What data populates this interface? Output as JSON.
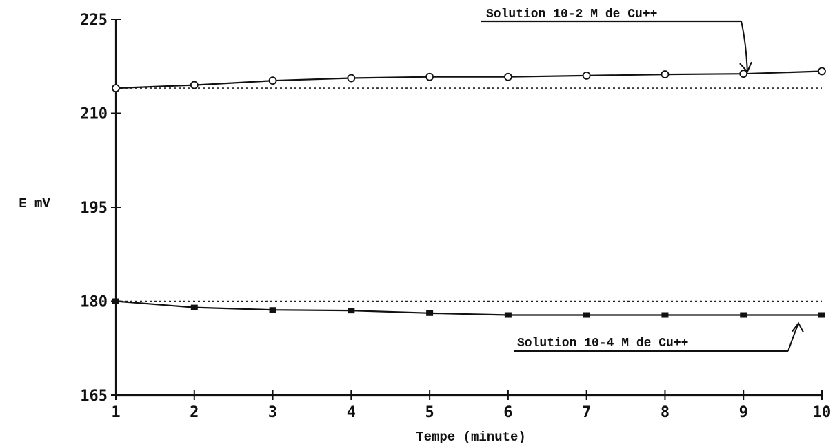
{
  "chart_data": {
    "type": "line",
    "xlabel": "Tempe (minute)",
    "ylabel": "E mV",
    "x": [
      1,
      2,
      3,
      4,
      5,
      6,
      7,
      8,
      9,
      10
    ],
    "xlim": [
      1,
      10
    ],
    "ylim": [
      165,
      225
    ],
    "x_ticks": [
      "1",
      "2",
      "3",
      "4",
      "5",
      "6",
      "7",
      "8",
      "9",
      "10"
    ],
    "y_ticks": [
      "165",
      "180",
      "195",
      "210",
      "225"
    ],
    "grid": false,
    "series": [
      {
        "name": "Solution 10-2 M de Cu++",
        "marker": "open-circle",
        "values": [
          214.0,
          214.5,
          215.2,
          215.6,
          215.8,
          215.8,
          216.0,
          216.2,
          216.3,
          216.7
        ],
        "reference_line": 214.0
      },
      {
        "name": "Solution 10-4 M de Cu++",
        "marker": "filled-square",
        "values": [
          180.0,
          179.0,
          178.6,
          178.5,
          178.1,
          177.8,
          177.8,
          177.8,
          177.8,
          177.8
        ],
        "reference_line": 180.0
      }
    ]
  }
}
